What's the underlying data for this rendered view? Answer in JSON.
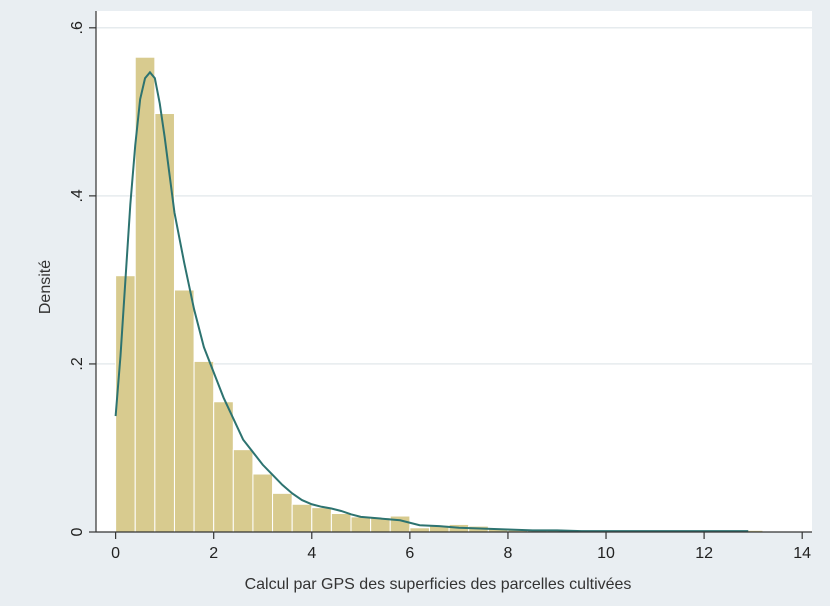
{
  "chart_data": {
    "type": "bar",
    "ylabel": "Densité",
    "xlabel": "Calcul par GPS des superficies des parcelles cultivées",
    "xlim": [
      -0.4,
      14.2
    ],
    "ylim": [
      0,
      0.62
    ],
    "grid": true,
    "x_ticks": [
      0,
      2,
      4,
      6,
      8,
      10,
      12,
      14
    ],
    "x_tick_labels": [
      "0",
      "2",
      "4",
      "6",
      "8",
      "10",
      "12",
      "14"
    ],
    "y_ticks": [
      0,
      0.2,
      0.4,
      0.6
    ],
    "y_tick_labels": [
      "0",
      ".2",
      ".4",
      ".6"
    ],
    "bin_width": 0.4,
    "bin_start": 0,
    "bar_values": [
      0.305,
      0.565,
      0.498,
      0.288,
      0.203,
      0.155,
      0.098,
      0.069,
      0.046,
      0.033,
      0.029,
      0.022,
      0.018,
      0.017,
      0.019,
      0.005,
      0.008,
      0.009,
      0.007,
      0.004,
      0.003,
      0.003,
      0.002,
      0.002,
      0.002,
      0.001,
      0.001,
      0.001,
      0.001,
      0.001,
      0.002,
      0.001,
      0.002
    ],
    "density_curve": {
      "x": [
        0,
        0.1,
        0.2,
        0.3,
        0.4,
        0.5,
        0.6,
        0.7,
        0.8,
        0.9,
        1.0,
        1.1,
        1.2,
        1.3,
        1.4,
        1.6,
        1.8,
        2.0,
        2.2,
        2.4,
        2.6,
        2.8,
        3.0,
        3.2,
        3.4,
        3.6,
        3.8,
        4.0,
        4.2,
        4.4,
        4.6,
        4.8,
        5.0,
        5.4,
        5.8,
        6.2,
        6.6,
        7.0,
        7.5,
        8.0,
        8.5,
        9.0,
        9.5,
        10.0,
        10.5,
        11.0,
        11.5,
        12.0,
        12.5,
        12.9
      ],
      "y": [
        0.138,
        0.21,
        0.3,
        0.39,
        0.46,
        0.515,
        0.54,
        0.547,
        0.54,
        0.51,
        0.47,
        0.425,
        0.38,
        0.35,
        0.32,
        0.265,
        0.22,
        0.19,
        0.16,
        0.135,
        0.11,
        0.095,
        0.08,
        0.068,
        0.056,
        0.046,
        0.038,
        0.033,
        0.03,
        0.028,
        0.025,
        0.021,
        0.018,
        0.016,
        0.014,
        0.008,
        0.007,
        0.005,
        0.004,
        0.003,
        0.002,
        0.002,
        0.001,
        0.001,
        0.001,
        0.001,
        0.001,
        0.001,
        0.001,
        0.001
      ]
    },
    "colors": {
      "outer_background": "#E9EEF2",
      "plot_background": "#FFFFFF",
      "gridline": "#E6EBEE",
      "bar_fill": "#D8CB8F",
      "bar_edge": "#FFFFFF",
      "density_line": "#2D7370",
      "axis": "#333333"
    }
  }
}
